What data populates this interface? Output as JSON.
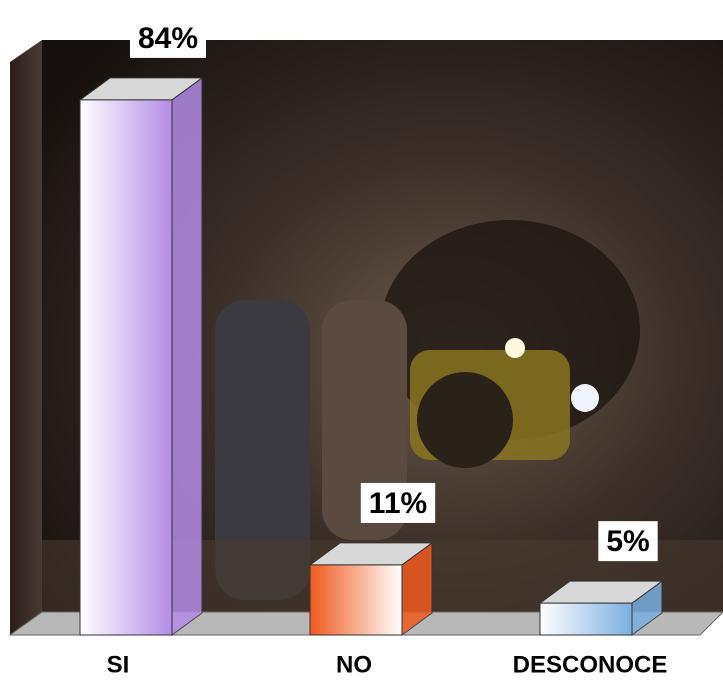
{
  "chart_data": {
    "type": "bar3d",
    "categories": [
      "SI",
      "NO",
      "DESCONOCE"
    ],
    "values": [
      84,
      11,
      5
    ],
    "value_labels": [
      "84%",
      "11%",
      "5%"
    ],
    "colors": [
      "#b48ce6",
      "#f05a1e",
      "#7aaee0"
    ]
  }
}
